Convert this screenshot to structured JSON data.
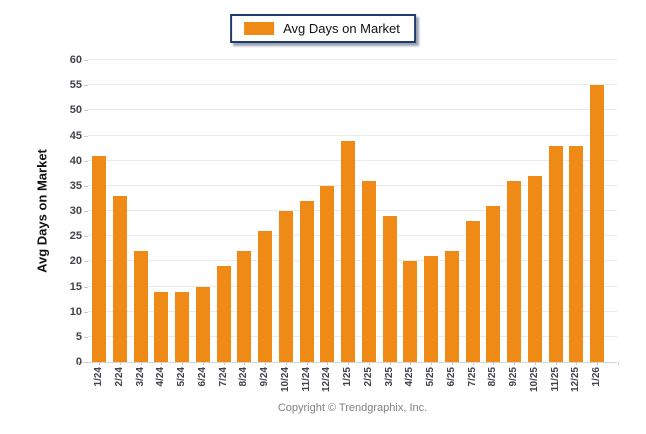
{
  "legend": {
    "label": "Avg Days on Market"
  },
  "footer": {
    "text": "Copyright © Trendgraphix, Inc."
  },
  "colors": {
    "bar": "#EF8A17",
    "legend_border": "#1F3B6D",
    "gridline": "#EBEBEB",
    "axis_line": "#D5D5D5",
    "tick_label": "#42424A",
    "footer_text": "#808080"
  },
  "chart_data": {
    "type": "bar",
    "title": "",
    "categories": [
      "1/24",
      "2/24",
      "3/24",
      "4/24",
      "5/24",
      "6/24",
      "7/24",
      "8/24",
      "9/24",
      "10/24",
      "11/24",
      "12/24",
      "1/25",
      "2/25",
      "3/25",
      "4/25",
      "5/25",
      "6/25",
      "7/25",
      "8/25",
      "9/25",
      "10/25",
      "11/25",
      "12/25",
      "1/26"
    ],
    "values": [
      41,
      33,
      22,
      14,
      14,
      15,
      19,
      22,
      26,
      30,
      32,
      35,
      44,
      36,
      29,
      20,
      21,
      22,
      28,
      31,
      36,
      37,
      43,
      43,
      55
    ],
    "xlabel": "",
    "ylabel": "Avg Days on Market",
    "ylim": [
      0,
      60
    ],
    "ytick_step": 5,
    "grid": "horizontal",
    "legend_entries": [
      "Avg Days on Market"
    ],
    "legend_position": "top-center",
    "bar_color": "#EF8A17"
  }
}
